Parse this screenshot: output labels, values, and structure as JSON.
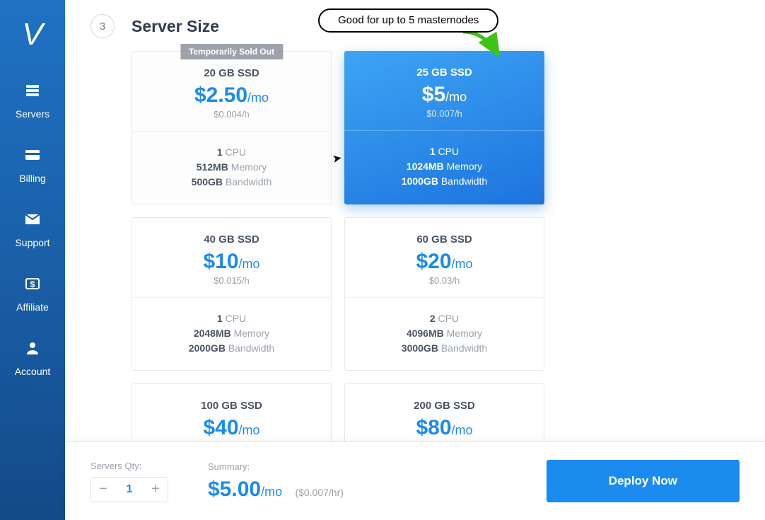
{
  "sidebar": {
    "items": [
      {
        "label": "Servers"
      },
      {
        "label": "Billing"
      },
      {
        "label": "Support"
      },
      {
        "label": "Affiliate"
      },
      {
        "label": "Account"
      }
    ]
  },
  "section": {
    "step": "3",
    "title": "Server Size",
    "callout": "Good for up to 5 masternodes"
  },
  "plans": [
    {
      "ssd": "20 GB SSD",
      "price": "$2.50",
      "per": "/mo",
      "hr": "$0.004/h",
      "cpu_v": "1",
      "cpu_l": " CPU",
      "mem_v": "512MB",
      "mem_l": " Memory",
      "bw_v": "500GB",
      "bw_l": " Bandwidth",
      "selected": false,
      "soldout": "Temporarily Sold Out"
    },
    {
      "ssd": "25 GB SSD",
      "price": "$5",
      "per": "/mo",
      "hr": "$0.007/h",
      "cpu_v": "1",
      "cpu_l": " CPU",
      "mem_v": "1024MB",
      "mem_l": " Memory",
      "bw_v": "1000GB",
      "bw_l": " Bandwidth",
      "selected": true
    },
    {
      "ssd": "40 GB SSD",
      "price": "$10",
      "per": "/mo",
      "hr": "$0.015/h",
      "cpu_v": "1",
      "cpu_l": " CPU",
      "mem_v": "2048MB",
      "mem_l": " Memory",
      "bw_v": "2000GB",
      "bw_l": " Bandwidth",
      "selected": false
    },
    {
      "ssd": "60 GB SSD",
      "price": "$20",
      "per": "/mo",
      "hr": "$0.03/h",
      "cpu_v": "2",
      "cpu_l": " CPU",
      "mem_v": "4096MB",
      "mem_l": " Memory",
      "bw_v": "3000GB",
      "bw_l": " Bandwidth",
      "selected": false
    },
    {
      "ssd": "100 GB SSD",
      "price": "$40",
      "per": "/mo",
      "hr": "",
      "cpu_v": "",
      "cpu_l": "",
      "mem_v": "",
      "mem_l": "",
      "bw_v": "",
      "bw_l": "",
      "selected": false,
      "partial": true
    },
    {
      "ssd": "200 GB SSD",
      "price": "$80",
      "per": "/mo",
      "hr": "",
      "cpu_v": "",
      "cpu_l": "",
      "mem_v": "",
      "mem_l": "",
      "bw_v": "",
      "bw_l": "",
      "selected": false,
      "partial": true
    }
  ],
  "footer": {
    "qty_label": "Servers Qty:",
    "qty_value": "1",
    "summary_label": "Summary:",
    "summary_price": "$5.00",
    "summary_per": "/mo",
    "summary_hr": "($0.007/hr)",
    "deploy_label": "Deploy Now"
  },
  "colors": {
    "accent": "#1c8bef",
    "sidebar_top": "#1f72c4",
    "sidebar_bottom": "#134a88",
    "text_dark": "#4a5462",
    "text_muted": "#9aa2ab",
    "border": "#e6e8ea",
    "arrow": "#3ec416"
  }
}
